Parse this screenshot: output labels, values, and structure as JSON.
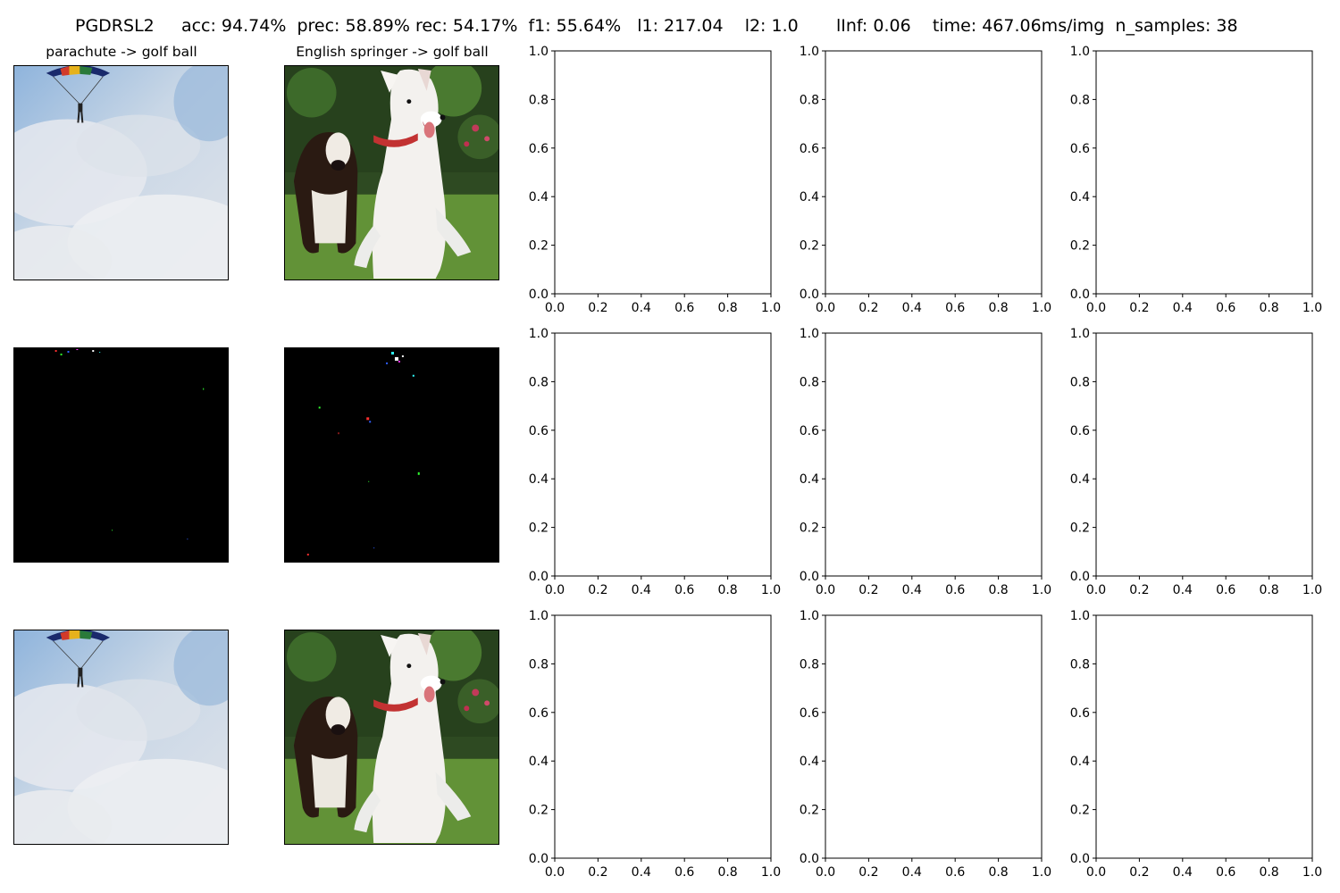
{
  "figure": {
    "suptitle": "PGDRSL2     acc: 94.74%  prec: 58.89% rec: 54.17%  f1: 55.64%   l1: 217.04    l2: 1.0       lInf: 0.06    time: 467.06ms/img  n_samples: 38"
  },
  "image_columns": [
    {
      "title": "parachute -> golf ball",
      "scene": "sky-parachute"
    },
    {
      "title": "English springer -> golf ball",
      "scene": "dogs-lawn"
    }
  ],
  "image_rows": [
    {
      "kind": "original"
    },
    {
      "kind": "perturbation"
    },
    {
      "kind": "adversarial"
    }
  ],
  "chart_data": {
    "type": "scatter",
    "grid": false,
    "panel_count": 9,
    "panel_layout": {
      "rows": 3,
      "cols": 3
    },
    "xlim": [
      0.0,
      1.0
    ],
    "ylim": [
      0.0,
      1.0
    ],
    "xticks": [
      "0.0",
      "0.2",
      "0.4",
      "0.6",
      "0.8",
      "1.0"
    ],
    "yticks": [
      "0.0",
      "0.2",
      "0.4",
      "0.6",
      "0.8",
      "1.0"
    ],
    "series": []
  }
}
